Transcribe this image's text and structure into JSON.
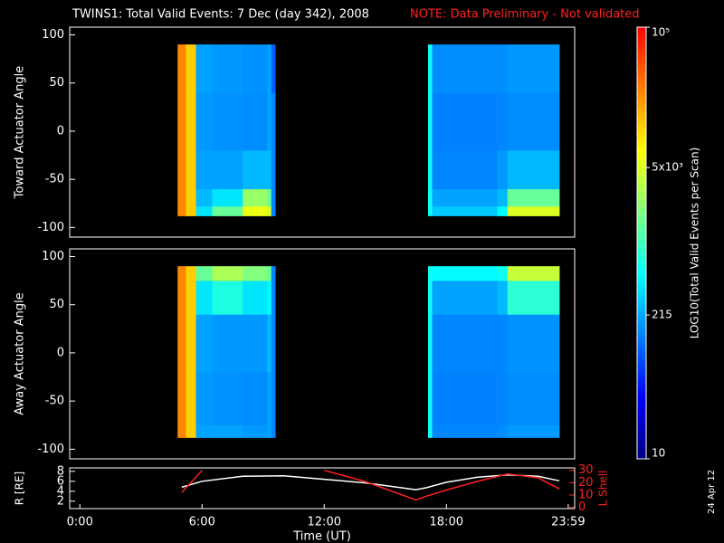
{
  "title": "TWINS1: Total Valid Events:  7 Dec (day 342), 2008",
  "note": "NOTE: Data Preliminary - Not validated",
  "stamp": "24 Apr 12",
  "colorbar": {
    "label": "LOG10(Total Valid Events per Scan)",
    "lim": [
      10,
      100000
    ],
    "log": true,
    "ticks": [
      10,
      215,
      {
        "value": 5000,
        "label": "5x10³"
      },
      {
        "value": 100000,
        "label": "10⁵"
      }
    ],
    "colormap": [
      "#000080",
      "#0000ff",
      "#0080ff",
      "#00ffff",
      "#80ff80",
      "#ffff00",
      "#ff8000",
      "#ff0000"
    ]
  },
  "chart_data": [
    {
      "type": "heatmap",
      "ylabel": "Toward Actuator Angle",
      "xlim": [
        -0.5,
        24.3
      ],
      "ylim": [
        -110,
        108
      ],
      "yticks": [
        -100,
        -50,
        0,
        50,
        100
      ],
      "x_edges": [
        4.8,
        5.2,
        5.7,
        6.5,
        8.0,
        9.2,
        9.4,
        9.6,
        17.1,
        17.3,
        20.5,
        21.0,
        23.55
      ],
      "y_edges": [
        -88,
        -78,
        -60,
        -20,
        40,
        90
      ],
      "z": [
        [
          25000,
          12000,
          400,
          1500,
          6000,
          5000,
          150,
          null,
          600,
          300,
          500,
          5000
        ],
        [
          25000,
          12000,
          250,
          400,
          2500,
          1500,
          150,
          null,
          600,
          200,
          250,
          1500
        ],
        [
          25000,
          12000,
          200,
          200,
          250,
          250,
          150,
          null,
          600,
          150,
          180,
          250
        ],
        [
          25000,
          12000,
          180,
          170,
          160,
          200,
          150,
          null,
          600,
          140,
          150,
          160
        ],
        [
          25000,
          12000,
          200,
          180,
          170,
          200,
          100,
          null,
          600,
          160,
          160,
          180
        ]
      ]
    },
    {
      "type": "heatmap",
      "ylabel": "Away Actuator Angle",
      "xlim": [
        -0.5,
        24.3
      ],
      "ylim": [
        -110,
        108
      ],
      "yticks": [
        -100,
        -50,
        0,
        50,
        100
      ],
      "x_edges": [
        4.8,
        5.2,
        5.7,
        6.5,
        8.0,
        9.2,
        9.4,
        9.6,
        17.1,
        17.3,
        20.5,
        21.0,
        23.55
      ],
      "y_edges": [
        -88,
        -75,
        -20,
        40,
        75,
        90
      ],
      "z": [
        [
          25000,
          12000,
          200,
          200,
          180,
          200,
          150,
          null,
          600,
          150,
          160,
          180
        ],
        [
          25000,
          12000,
          180,
          170,
          160,
          200,
          150,
          null,
          600,
          140,
          150,
          160
        ],
        [
          25000,
          12000,
          200,
          180,
          180,
          250,
          150,
          null,
          600,
          150,
          150,
          170
        ],
        [
          25000,
          12000,
          400,
          700,
          400,
          500,
          150,
          null,
          600,
          200,
          250,
          800
        ],
        [
          25000,
          12000,
          1500,
          3000,
          2000,
          1500,
          150,
          null,
          600,
          500,
          600,
          4000
        ]
      ]
    },
    {
      "type": "line",
      "xlabel": "Time (UT)",
      "ylabel": "R [RE]",
      "y2label": "L Shell",
      "xlim": [
        -0.5,
        24.3
      ],
      "xticks": [
        {
          "value": 0,
          "label": "0:00"
        },
        {
          "value": 6,
          "label": "6:00"
        },
        {
          "value": 12,
          "label": "12:00"
        },
        {
          "value": 18,
          "label": "18:00"
        },
        {
          "value": 23.983,
          "label": "23:59"
        }
      ],
      "ylim": [
        0.5,
        8.7
      ],
      "yticks": [
        2,
        4,
        6,
        8
      ],
      "y2lim": [
        -1,
        32
      ],
      "y2ticks": [
        0,
        10,
        20,
        30
      ],
      "x": [
        5,
        6,
        8,
        10,
        12,
        14,
        16.5,
        17,
        18,
        19.5,
        21,
        22.5,
        23.55
      ],
      "series": [
        {
          "name": "R",
          "color": "#ffffff",
          "values": [
            4.8,
            6.0,
            7.0,
            7.1,
            6.4,
            5.7,
            4.3,
            4.7,
            5.8,
            6.8,
            7.3,
            7.0,
            6.1
          ]
        },
        {
          "name": "L Shell",
          "color": "#ff2020",
          "axis": "y2",
          "values": [
            12,
            30,
            null,
            null,
            30,
            21,
            6,
            9,
            14,
            21,
            27,
            24,
            15
          ]
        }
      ]
    }
  ]
}
